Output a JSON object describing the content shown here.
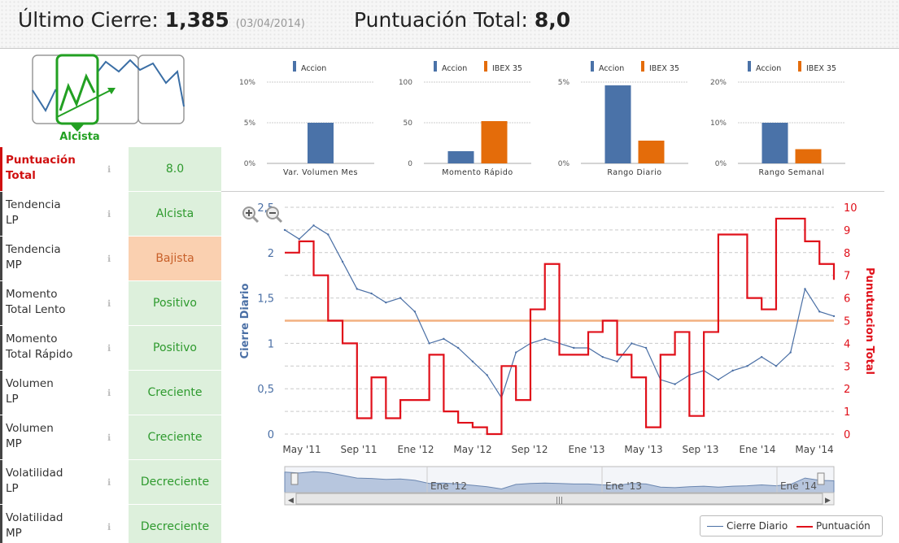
{
  "header": {
    "close_label": "Último Cierre:",
    "close_value": "1,385",
    "close_date": "(03/04/2014)",
    "total_label": "Puntuación Total:",
    "total_value": "8,0"
  },
  "trend": {
    "label": "Alcista",
    "icon": "trend-chart-icon"
  },
  "score_rows": [
    {
      "label1": "Puntuación",
      "label2": "Total",
      "value": "8.0",
      "highlight": true,
      "state": "neutral"
    },
    {
      "label1": "Tendencia",
      "label2": "LP",
      "value": "Alcista",
      "state": "good"
    },
    {
      "label1": "Tendencia",
      "label2": "MP",
      "value": "Bajista",
      "state": "bad"
    },
    {
      "label1": "Momento",
      "label2": "Total Lento",
      "value": "Positivo",
      "state": "good"
    },
    {
      "label1": "Momento",
      "label2": "Total Rápido",
      "value": "Positivo",
      "state": "good"
    },
    {
      "label1": "Volumen",
      "label2": "LP",
      "value": "Creciente",
      "state": "good"
    },
    {
      "label1": "Volumen",
      "label2": "MP",
      "value": "Creciente",
      "state": "good"
    },
    {
      "label1": "Volatilidad",
      "label2": "LP",
      "value": "Decreciente",
      "state": "good"
    },
    {
      "label1": "Volatilidad",
      "label2": "MP",
      "value": "Decreciente",
      "state": "good"
    }
  ],
  "info_icon": "ℹ",
  "colors": {
    "accion": "#4a72a8",
    "ibex": "#e46c0a",
    "score": "#e0101a",
    "close": "#4a6fa5",
    "good_bg": "#ddf0dc",
    "bad_bg": "#fad0b0"
  },
  "chart_data": [
    {
      "type": "bar",
      "categories": [
        "Var. Volumen Mes"
      ],
      "series": [
        {
          "name": "Accion",
          "values": [
            5
          ]
        }
      ],
      "ylim": [
        0,
        10
      ],
      "tick_labels": [
        "0%",
        "5%",
        "10%"
      ]
    },
    {
      "type": "bar",
      "categories": [
        "Momento Rápido"
      ],
      "series": [
        {
          "name": "Accion",
          "values": [
            15
          ]
        },
        {
          "name": "IBEX 35",
          "values": [
            52
          ]
        }
      ],
      "ylim": [
        0,
        100
      ],
      "tick_labels": [
        "0",
        "50",
        "100"
      ]
    },
    {
      "type": "bar",
      "categories": [
        "Rango Diario"
      ],
      "series": [
        {
          "name": "Accion",
          "values": [
            4.8
          ]
        },
        {
          "name": "IBEX 35",
          "values": [
            1.4
          ]
        }
      ],
      "ylim": [
        0,
        5
      ],
      "tick_labels": [
        "0%",
        "5%"
      ]
    },
    {
      "type": "bar",
      "categories": [
        "Rango Semanal"
      ],
      "series": [
        {
          "name": "Accion",
          "values": [
            10
          ]
        },
        {
          "name": "IBEX 35",
          "values": [
            3.5
          ]
        }
      ],
      "ylim": [
        0,
        20
      ],
      "tick_labels": [
        "0%",
        "10%",
        "20%"
      ]
    },
    {
      "type": "line",
      "ylabel": "Cierre Diario",
      "y2label": "Punutuacion Total",
      "ylim": [
        0,
        2.5
      ],
      "y2lim": [
        0,
        10
      ],
      "y_ticks": [
        "0",
        "0,5",
        "1",
        "1,5",
        "2",
        "2,5"
      ],
      "y2_ticks": [
        "0",
        "1",
        "2",
        "3",
        "4",
        "5",
        "6",
        "7",
        "8",
        "9",
        "10"
      ],
      "x_ticks": [
        "May '11",
        "Sep '11",
        "Ene '12",
        "May '12",
        "Sep '12",
        "Ene '13",
        "May '13",
        "Sep '13",
        "Ene '14",
        "May '14"
      ],
      "reference_line": 1.25,
      "navigator_labels": [
        "Ene '12",
        "Ene '13",
        "Ene '14"
      ],
      "series": [
        {
          "name": "Cierre Diario",
          "x": [
            "Mar '11",
            "Abr '11",
            "May '11",
            "Jun '11",
            "Jul '11",
            "Ago '11",
            "Sep '11",
            "Oct '11",
            "Nov '11",
            "Dic '11",
            "Ene '12",
            "Feb '12",
            "Mar '12",
            "Abr '12",
            "May '12",
            "Jun '12",
            "Jul '12",
            "Ago '12",
            "Sep '12",
            "Oct '12",
            "Nov '12",
            "Dic '12",
            "Ene '13",
            "Feb '13",
            "Mar '13",
            "Abr '13",
            "May '13",
            "Jun '13",
            "Jul '13",
            "Ago '13",
            "Sep '13",
            "Oct '13",
            "Nov '13",
            "Dic '13",
            "Ene '14",
            "Feb '14",
            "Mar '14",
            "Abr '14",
            "May '14"
          ],
          "values": [
            2.25,
            2.15,
            2.3,
            2.2,
            1.9,
            1.6,
            1.55,
            1.45,
            1.5,
            1.35,
            1.0,
            1.05,
            0.95,
            0.8,
            0.65,
            0.4,
            0.9,
            1.0,
            1.05,
            1.0,
            0.95,
            0.95,
            0.85,
            0.8,
            1.0,
            0.95,
            0.6,
            0.55,
            0.65,
            0.7,
            0.6,
            0.7,
            0.75,
            0.85,
            0.75,
            0.9,
            1.6,
            1.35,
            1.3
          ]
        },
        {
          "name": "Puntuación",
          "x": [
            "Mar '11",
            "Abr '11",
            "May '11",
            "Jun '11",
            "Jul '11",
            "Ago '11",
            "Sep '11",
            "Oct '11",
            "Nov '11",
            "Dic '11",
            "Ene '12",
            "Feb '12",
            "Mar '12",
            "Abr '12",
            "May '12",
            "Jun '12",
            "Jul '12",
            "Ago '12",
            "Sep '12",
            "Oct '12",
            "Nov '12",
            "Dic '12",
            "Ene '13",
            "Feb '13",
            "Mar '13",
            "Abr '13",
            "May '13",
            "Jun '13",
            "Jul '13",
            "Ago '13",
            "Sep '13",
            "Oct '13",
            "Nov '13",
            "Dic '13",
            "Ene '14",
            "Feb '14",
            "Mar '14",
            "Abr '14",
            "May '14"
          ],
          "values": [
            8,
            8.5,
            7,
            5,
            4,
            0.7,
            2.5,
            0.7,
            1.5,
            1.5,
            3.5,
            1,
            0.5,
            0.3,
            0,
            3,
            1.5,
            5.5,
            7.5,
            3.5,
            3.5,
            4.5,
            5,
            3.5,
            2.5,
            0.3,
            3.5,
            4.5,
            0.8,
            4.5,
            8.8,
            8.8,
            6,
            5.5,
            9.5,
            9.5,
            8.5,
            7.5,
            6.8
          ]
        }
      ]
    }
  ],
  "legend": {
    "close": "Cierre Diario",
    "score": "Puntuación"
  }
}
